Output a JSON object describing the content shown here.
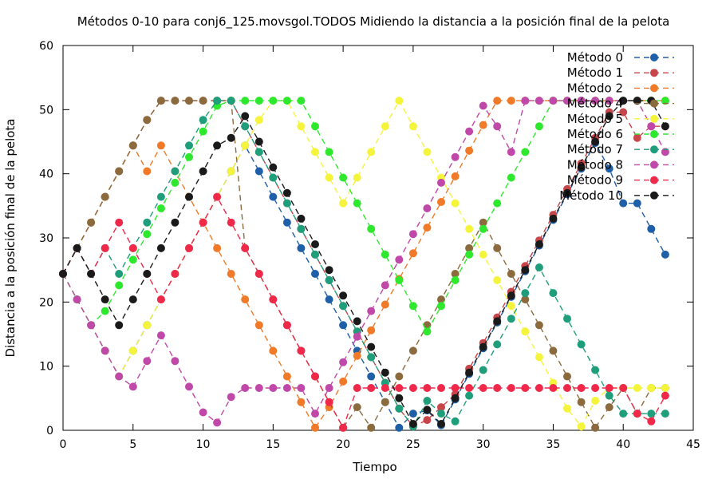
{
  "chart_data": {
    "type": "line",
    "title": "Métodos 0-10 para conj6_125.movsgol.TODOS Midiendo la distancia a la posición final de la pelota",
    "xlabel": "Tiempo",
    "ylabel": "Distancia a la posición final de la pelota",
    "xlim": [
      0,
      45
    ],
    "ylim": [
      0,
      60
    ],
    "xticks": [
      "0",
      "5",
      "10",
      "15",
      "20",
      "25",
      "30",
      "35",
      "40",
      "45"
    ],
    "yticks": [
      "0",
      "10",
      "20",
      "30",
      "40",
      "50",
      "60"
    ],
    "grid": false,
    "legend_position": "top-right",
    "series": [
      {
        "name": "Método 0",
        "color": "#1f5fa8",
        "values": [
          24.4,
          20.4,
          16.4,
          12.4,
          8.4,
          12.4,
          16.4,
          20.4,
          24.4,
          28.4,
          32.4,
          36.4,
          40.4,
          44.4,
          40.4,
          36.4,
          32.4,
          28.4,
          24.4,
          20.4,
          16.4,
          12.4,
          8.4,
          4.4,
          0.4,
          2.6,
          3.1,
          0.8,
          4.8,
          8.8,
          12.8,
          16.8,
          20.8,
          24.8,
          28.8,
          32.8,
          36.8,
          40.8,
          44.8,
          40.8,
          35.4,
          35.4,
          31.4,
          27.4
        ]
      },
      {
        "name": "Método 1",
        "color": "#c8464a",
        "values": [
          24.4,
          28.4,
          32.4,
          36.4,
          40.4,
          44.4,
          48.4,
          51.4,
          51.4,
          51.4,
          51.4,
          51.4,
          51.4,
          47.4,
          43.4,
          39.4,
          35.4,
          31.4,
          27.4,
          23.4,
          19.4,
          15.4,
          11.4,
          7.4,
          3.4,
          0.6,
          1.6,
          3.6,
          5.6,
          9.6,
          13.6,
          17.6,
          21.6,
          25.6,
          29.6,
          33.6,
          37.6,
          41.6,
          45.6,
          49.6,
          49.6,
          45.6,
          47.4,
          47.4
        ]
      },
      {
        "name": "Método 2",
        "color": "#f07a28",
        "values": [
          24.4,
          28.4,
          32.4,
          36.4,
          40.4,
          44.4,
          40.4,
          44.4,
          40.4,
          36.4,
          32.4,
          28.4,
          24.4,
          20.4,
          16.4,
          12.4,
          8.4,
          4.4,
          0.4,
          3.6,
          7.6,
          11.6,
          15.6,
          19.6,
          23.6,
          27.6,
          31.6,
          35.6,
          39.6,
          43.6,
          47.6,
          51.4,
          51.4,
          51.4,
          51.4,
          51.4,
          51.4,
          51.4,
          51.4,
          51.4,
          51.4,
          51.4,
          51.4,
          51.4
        ]
      },
      {
        "name": "Método 4",
        "color": "#8b6b3e",
        "values": [
          24.4,
          28.4,
          32.4,
          36.4,
          40.4,
          44.4,
          48.4,
          51.4,
          51.4,
          51.4,
          51.4,
          51.4,
          51.4,
          28.4,
          24.4,
          20.4,
          16.4,
          12.4,
          8.4,
          4.4,
          0.4,
          3.6,
          0.4,
          4.4,
          8.4,
          12.4,
          16.4,
          20.4,
          24.4,
          28.4,
          32.4,
          28.4,
          24.4,
          20.4,
          16.4,
          12.4,
          8.4,
          4.4,
          0.4,
          3.6,
          6.6,
          2.6,
          6.6,
          6.6
        ]
      },
      {
        "name": "Método 5",
        "color": "#f4f43c",
        "values": [
          24.4,
          20.4,
          16.4,
          12.4,
          8.4,
          12.4,
          16.4,
          20.4,
          24.4,
          28.4,
          32.4,
          36.4,
          40.4,
          44.4,
          48.4,
          51.4,
          51.4,
          47.4,
          43.4,
          39.4,
          35.4,
          39.4,
          43.4,
          47.4,
          51.4,
          47.4,
          43.4,
          39.4,
          35.4,
          31.4,
          27.4,
          23.4,
          19.4,
          15.4,
          11.4,
          7.4,
          3.4,
          0.6,
          4.6,
          6.6,
          6.6,
          6.6,
          6.6,
          6.6
        ]
      },
      {
        "name": "Método 6",
        "color": "#2ee82e",
        "values": [
          24.4,
          20.4,
          16.4,
          18.6,
          22.6,
          26.6,
          30.6,
          34.6,
          38.6,
          42.6,
          46.6,
          50.6,
          51.4,
          51.4,
          51.4,
          51.4,
          51.4,
          51.4,
          47.4,
          43.4,
          39.4,
          35.4,
          31.4,
          27.4,
          23.4,
          19.4,
          15.4,
          19.4,
          23.4,
          27.4,
          31.4,
          35.4,
          39.4,
          43.4,
          47.4,
          51.4,
          51.4,
          51.4,
          51.4,
          51.4,
          51.4,
          51.4,
          51.4,
          51.4
        ]
      },
      {
        "name": "Método 7",
        "color": "#1e9e7a",
        "values": [
          24.4,
          28.4,
          24.4,
          28.4,
          24.4,
          28.4,
          32.4,
          36.4,
          40.4,
          44.4,
          48.4,
          51.4,
          51.4,
          47.4,
          43.4,
          39.4,
          35.4,
          31.4,
          27.4,
          23.4,
          19.4,
          15.4,
          11.4,
          7.4,
          3.4,
          0.6,
          4.6,
          2.6,
          1.4,
          5.4,
          9.4,
          13.4,
          17.4,
          21.4,
          25.4,
          21.4,
          17.4,
          13.4,
          9.4,
          5.4,
          2.6,
          2.6,
          2.6,
          2.6
        ]
      },
      {
        "name": "Método 8",
        "color": "#c048a8",
        "values": [
          24.4,
          20.4,
          16.4,
          12.4,
          8.4,
          6.8,
          10.8,
          14.8,
          10.8,
          6.8,
          2.8,
          1.2,
          5.2,
          6.6,
          6.6,
          6.6,
          6.6,
          6.6,
          2.6,
          6.6,
          10.6,
          14.6,
          18.6,
          22.6,
          26.6,
          30.6,
          34.6,
          38.6,
          42.6,
          46.6,
          50.6,
          47.4,
          43.4,
          51.4,
          51.4,
          51.4,
          51.4,
          51.4,
          51.4,
          51.4,
          51.4,
          51.4,
          47.4,
          43.4
        ]
      },
      {
        "name": "Método 9",
        "color": "#f0284a",
        "values": [
          24.4,
          28.4,
          24.4,
          28.4,
          32.4,
          28.4,
          24.4,
          20.4,
          24.4,
          28.4,
          32.4,
          36.4,
          32.4,
          28.4,
          24.4,
          20.4,
          16.4,
          12.4,
          8.4,
          4.4,
          0.4,
          6.6,
          6.6,
          6.6,
          6.6,
          6.6,
          6.6,
          6.6,
          6.6,
          6.6,
          6.6,
          6.6,
          6.6,
          6.6,
          6.6,
          6.6,
          6.6,
          6.6,
          6.6,
          6.6,
          6.6,
          2.6,
          1.4,
          5.4
        ]
      },
      {
        "name": "Método 10",
        "color": "#1a1a1a",
        "values": [
          24.4,
          28.4,
          24.4,
          20.4,
          16.4,
          20.4,
          24.4,
          28.4,
          32.4,
          36.4,
          40.4,
          44.4,
          45.6,
          49.0,
          45.0,
          41.0,
          37.0,
          33.0,
          29.0,
          25.0,
          21.0,
          17.0,
          13.0,
          9.0,
          5.0,
          1.0,
          3.2,
          1.0,
          5.0,
          9.0,
          13.0,
          17.0,
          21.0,
          25.0,
          29.0,
          33.0,
          37.0,
          41.0,
          45.0,
          49.0,
          51.4,
          51.4,
          51.4,
          47.4
        ]
      }
    ]
  }
}
